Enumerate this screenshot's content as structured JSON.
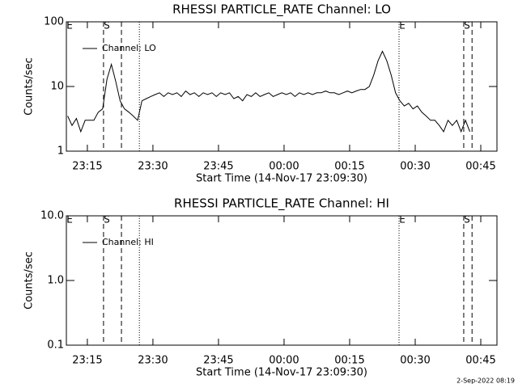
{
  "chart_data": [
    {
      "type": "line",
      "title": "RHESSI PARTICLE_RATE Channel: LO",
      "xlabel": "Start Time (14-Nov-17 23:09:30)",
      "ylabel": "Counts/sec",
      "log_y": true,
      "xlim": [
        0.7,
        99.2
      ],
      "ylim": [
        1,
        100
      ],
      "xticks": [
        {
          "value": 5.5,
          "label": "23:15"
        },
        {
          "value": 20.5,
          "label": "23:30"
        },
        {
          "value": 35.5,
          "label": "23:45"
        },
        {
          "value": 50.5,
          "label": "00:00"
        },
        {
          "value": 65.5,
          "label": "00:15"
        },
        {
          "value": 80.5,
          "label": "00:30"
        },
        {
          "value": 95.5,
          "label": "00:45"
        }
      ],
      "yticks": [
        1,
        10,
        100
      ],
      "legend": "upper left",
      "x": [
        1,
        2,
        3,
        4,
        5,
        6,
        7,
        8,
        9,
        10,
        11,
        12,
        13,
        14,
        15,
        16,
        17,
        18,
        19,
        20,
        21,
        22,
        23,
        24,
        25,
        26,
        27,
        28,
        29,
        30,
        31,
        32,
        33,
        34,
        35,
        36,
        37,
        38,
        39,
        40,
        41,
        42,
        43,
        44,
        45,
        46,
        47,
        48,
        49,
        50,
        51,
        52,
        53,
        54,
        55,
        56,
        57,
        58,
        59,
        60,
        61,
        62,
        63,
        64,
        65,
        66,
        67,
        68,
        69,
        70,
        71,
        72,
        73,
        74,
        75,
        76,
        77,
        78,
        79,
        80,
        81,
        82,
        83,
        84,
        85,
        86,
        87,
        88,
        89,
        90,
        91,
        92,
        93
      ],
      "series": [
        {
          "name": "Channel: LO",
          "color": "#000000",
          "values": [
            3.5,
            2.5,
            3.2,
            2,
            3,
            3,
            3,
            4,
            4.5,
            13,
            22,
            12,
            6,
            4.5,
            4,
            3.5,
            3,
            6,
            6.5,
            7,
            7.5,
            8,
            7,
            8,
            7.5,
            8,
            7,
            8.5,
            7.5,
            8,
            7,
            8,
            7.5,
            8,
            7,
            8,
            7.5,
            8,
            6.5,
            7,
            6,
            7.5,
            7,
            8,
            7,
            7.5,
            8,
            7,
            7.5,
            8,
            7.5,
            8,
            7,
            8,
            7.5,
            8,
            7.5,
            8,
            8,
            8.5,
            8,
            8,
            7.5,
            8,
            8.5,
            8,
            8.5,
            9,
            9,
            10,
            15,
            25,
            35,
            25,
            15,
            8,
            6,
            5,
            5.5,
            4.5,
            5,
            4,
            3.5,
            3,
            3,
            2.5,
            2,
            3,
            2.5,
            3,
            2,
            3,
            2
          ]
        }
      ],
      "lines": [
        {
          "x": 9.2,
          "style": "dashed"
        },
        {
          "x": 13.3,
          "style": "dashed"
        },
        {
          "x": 17.4,
          "style": "dotted"
        },
        {
          "x": 76.8,
          "style": "dotted"
        },
        {
          "x": 91.6,
          "style": "dashed"
        },
        {
          "x": 93.5,
          "style": "dashed"
        }
      ],
      "flags": [
        {
          "x": 0.7,
          "label": "E"
        },
        {
          "x": 9.2,
          "label": "S"
        },
        {
          "x": 76.8,
          "label": "E"
        },
        {
          "x": 91.6,
          "label": "S"
        }
      ]
    },
    {
      "type": "line",
      "title": "RHESSI PARTICLE_RATE Channel: HI",
      "xlabel": "Start Time (14-Nov-17 23:09:30)",
      "ylabel": "Counts/sec",
      "log_y": true,
      "xlim": [
        0.7,
        99.2
      ],
      "ylim": [
        0.1,
        10
      ],
      "xticks": [
        {
          "value": 5.5,
          "label": "23:15"
        },
        {
          "value": 20.5,
          "label": "23:30"
        },
        {
          "value": 35.5,
          "label": "23:45"
        },
        {
          "value": 50.5,
          "label": "00:00"
        },
        {
          "value": 65.5,
          "label": "00:15"
        },
        {
          "value": 80.5,
          "label": "00:30"
        },
        {
          "value": 95.5,
          "label": "00:45"
        }
      ],
      "yticks": [
        0.1,
        {
          "value": 1,
          "label": "1.0"
        },
        {
          "value": 10,
          "label": "10.0"
        }
      ],
      "legend": "upper left",
      "x": [],
      "series": [
        {
          "name": "Channel: HI",
          "color": "#000000",
          "values": []
        }
      ],
      "lines": [
        {
          "x": 9.2,
          "style": "dashed"
        },
        {
          "x": 13.3,
          "style": "dashed"
        },
        {
          "x": 17.4,
          "style": "dotted"
        },
        {
          "x": 76.8,
          "style": "dotted"
        },
        {
          "x": 91.6,
          "style": "dashed"
        },
        {
          "x": 93.5,
          "style": "dashed"
        }
      ],
      "flags": [
        {
          "x": 0.7,
          "label": "E"
        },
        {
          "x": 9.2,
          "label": "S"
        },
        {
          "x": 76.8,
          "label": "E"
        },
        {
          "x": 91.6,
          "label": "S"
        }
      ]
    }
  ],
  "footer": "2-Sep-2022 08:19"
}
